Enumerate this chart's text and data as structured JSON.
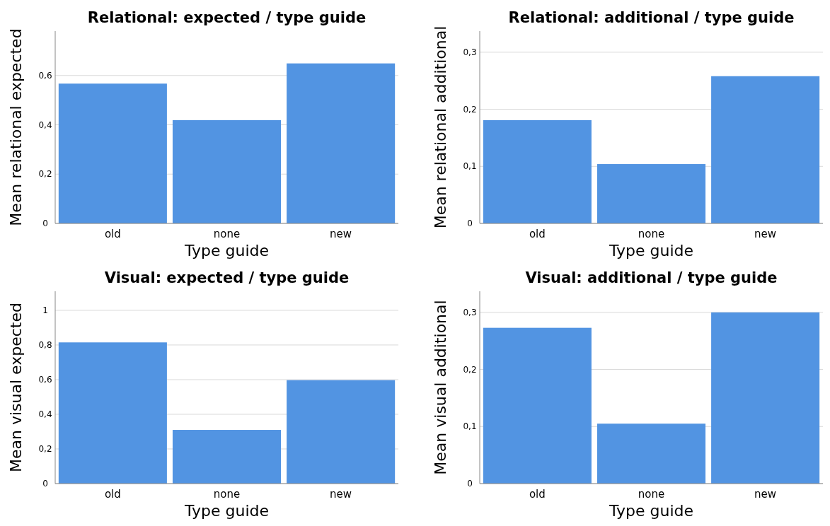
{
  "chart_data": [
    {
      "type": "bar",
      "title": "Relational: expected / type guide",
      "xlabel": "Type guide",
      "ylabel": "Mean relational expected",
      "categories": [
        "old",
        "none",
        "new"
      ],
      "values": [
        0.567,
        0.419,
        0.649
      ],
      "color": "#5294e2",
      "ylim": [
        0,
        0.78
      ],
      "yticks": [
        {
          "value": 0,
          "label": "0"
        },
        {
          "value": 0.2,
          "label": "0,2"
        },
        {
          "value": 0.4,
          "label": "0,4"
        },
        {
          "value": 0.6,
          "label": "0,6"
        }
      ],
      "grid": "y"
    },
    {
      "type": "bar",
      "title": "Relational: additional / type guide",
      "xlabel": "Type guide",
      "ylabel": "Mean relational additional",
      "categories": [
        "old",
        "none",
        "new"
      ],
      "values": [
        0.181,
        0.104,
        0.258
      ],
      "color": "#5294e2",
      "ylim": [
        0,
        0.337
      ],
      "yticks": [
        {
          "value": 0,
          "label": "0"
        },
        {
          "value": 0.1,
          "label": "0,1"
        },
        {
          "value": 0.2,
          "label": "0,2"
        },
        {
          "value": 0.3,
          "label": "0,3"
        }
      ],
      "grid": "y"
    },
    {
      "type": "bar",
      "title": "Visual: expected / type guide",
      "xlabel": "Type guide",
      "ylabel": "Mean visual expected",
      "categories": [
        "old",
        "none",
        "new"
      ],
      "values": [
        0.815,
        0.31,
        0.597
      ],
      "color": "#5294e2",
      "ylim": [
        0,
        1.11
      ],
      "yticks": [
        {
          "value": 0,
          "label": "0"
        },
        {
          "value": 0.2,
          "label": "0,2"
        },
        {
          "value": 0.4,
          "label": "0,4"
        },
        {
          "value": 0.6,
          "label": "0,6"
        },
        {
          "value": 0.8,
          "label": "0,8"
        },
        {
          "value": 1,
          "label": "1"
        }
      ],
      "grid": "y"
    },
    {
      "type": "bar",
      "title": "Visual: additional / type guide",
      "xlabel": "Type guide",
      "ylabel": "Mean visual additional",
      "categories": [
        "old",
        "none",
        "new"
      ],
      "values": [
        0.273,
        0.105,
        0.3
      ],
      "color": "#5294e2",
      "ylim": [
        0,
        0.337
      ],
      "yticks": [
        {
          "value": 0,
          "label": "0"
        },
        {
          "value": 0.1,
          "label": "0,1"
        },
        {
          "value": 0.2,
          "label": "0,2"
        },
        {
          "value": 0.3,
          "label": "0,3"
        }
      ],
      "grid": "y"
    }
  ]
}
